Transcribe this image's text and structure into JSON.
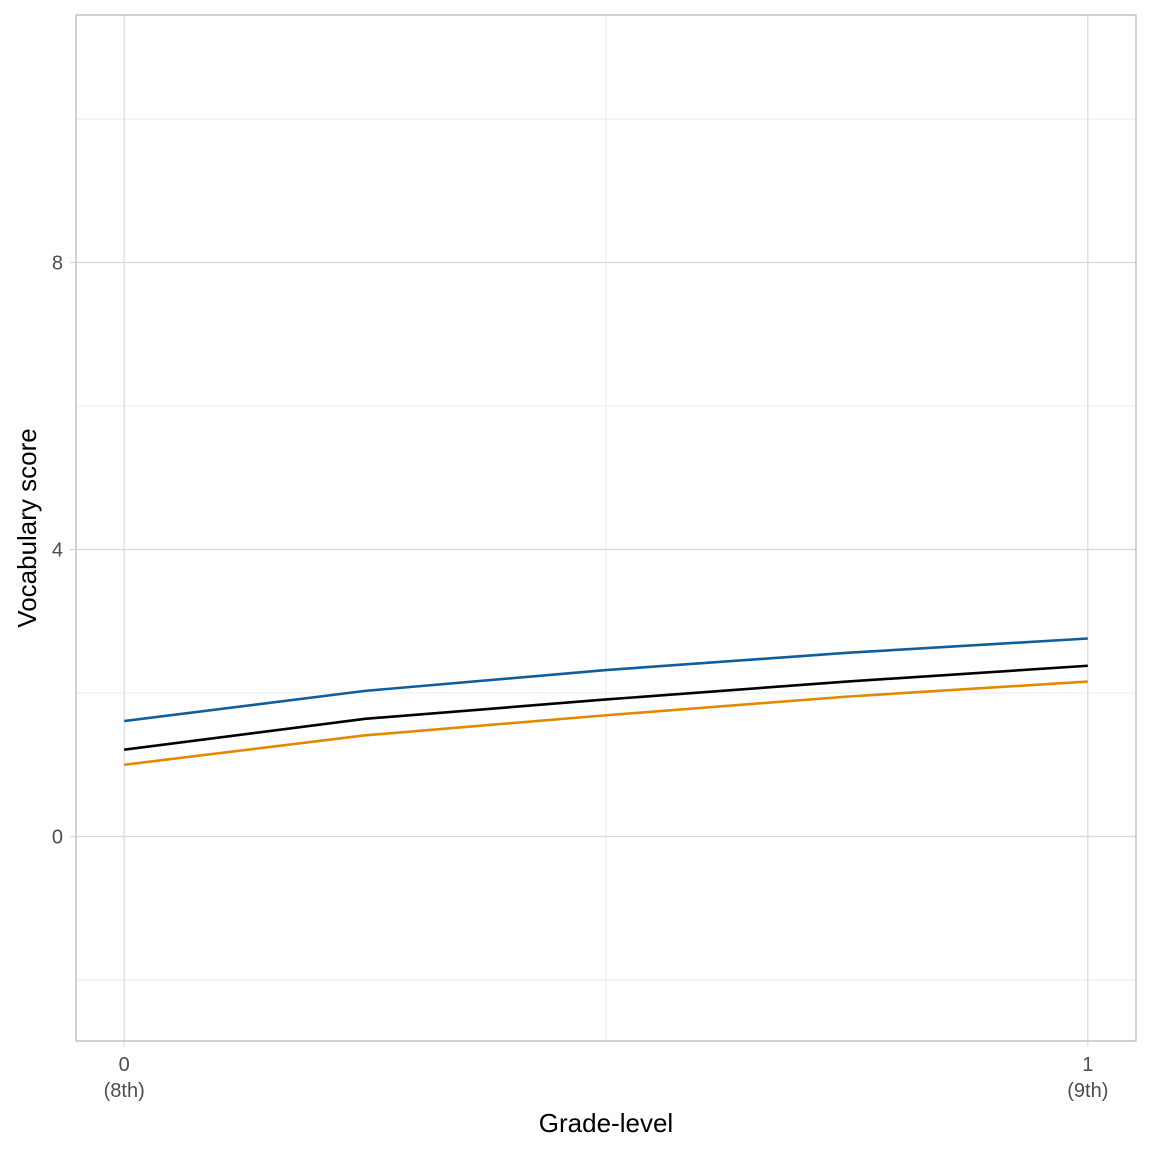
{
  "chart_data": {
    "type": "line",
    "title": "",
    "xlabel": "Grade-level",
    "ylabel": "Vocabulary score",
    "xlim": [
      -0.05,
      1.05
    ],
    "ylim": [
      -2.85,
      11.45
    ],
    "x_ticks": [
      {
        "value": 0,
        "label_line1": "0",
        "label_line2": "(8th)"
      },
      {
        "value": 1,
        "label_line1": "1",
        "label_line2": "(9th)"
      }
    ],
    "y_ticks": [
      {
        "value": 0,
        "label": "0"
      },
      {
        "value": 4,
        "label": "4"
      },
      {
        "value": 8,
        "label": "8"
      }
    ],
    "y_minor_ticks": [
      -2,
      2,
      6,
      10
    ],
    "x_minor_ticks": [
      0.5
    ],
    "grid": true,
    "legend": "none",
    "series": [
      {
        "color": "#0f5e9c",
        "x": [
          0,
          0.25,
          0.5,
          0.75,
          1
        ],
        "y": [
          1.61,
          2.03,
          2.32,
          2.56,
          2.76
        ]
      },
      {
        "color": "#000000",
        "x": [
          0,
          0.25,
          0.5,
          0.75,
          1
        ],
        "y": [
          1.21,
          1.64,
          1.91,
          2.16,
          2.38
        ]
      },
      {
        "color": "#e08a00",
        "x": [
          0,
          0.25,
          0.5,
          0.75,
          1
        ],
        "y": [
          1.0,
          1.41,
          1.69,
          1.95,
          2.16
        ]
      }
    ]
  },
  "colors": {
    "panel_border": "#b3b3b3",
    "grid_major": "#d9d9d9",
    "grid_minor": "#ebebeb",
    "tick": "#4d4d4d"
  }
}
